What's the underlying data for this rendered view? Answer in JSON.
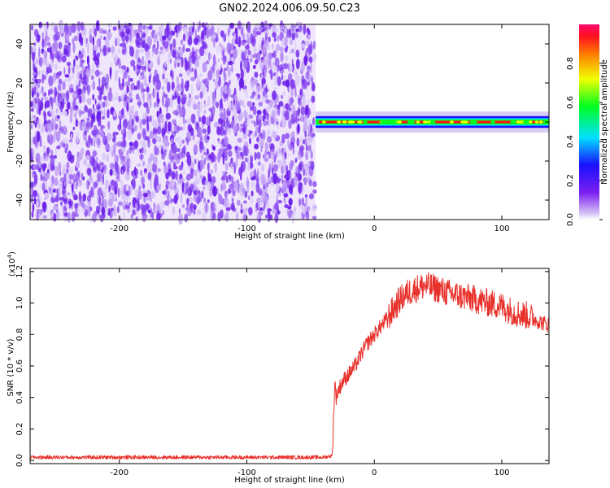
{
  "title": "GN02.2024.006.09.50.C23",
  "colors": {
    "trace": "#e8302a",
    "noise_dark": "#6a1ee8",
    "noise_light": "#d7c5f5",
    "axis": "#000000"
  },
  "chart_data": [
    {
      "type": "heatmap",
      "xlabel": "Height of straight line (km)",
      "ylabel": "Frequency (Hz)",
      "xlim": [
        -270,
        137
      ],
      "ylim": [
        -50,
        50
      ],
      "xticks": [
        -200,
        -100,
        0,
        100
      ],
      "xtick_labels": [
        "-200",
        "-100",
        "0",
        "100"
      ],
      "yticks": [
        -40,
        -20,
        0,
        20,
        40
      ],
      "ytick_labels": [
        "-40",
        "-20",
        "0",
        "20",
        "40"
      ],
      "noise_region_x": [
        -270,
        -46
      ],
      "signal_band": {
        "x": [
          -46,
          137
        ],
        "center_hz": 0,
        "halfwidth_hz": 3
      },
      "colorbar": {
        "label": "Normalized spectral amplitude",
        "range": [
          0,
          1
        ],
        "ticks": [
          0.0,
          0.2,
          0.4,
          0.6,
          0.8
        ],
        "tick_labels": [
          "0.0",
          "0.2",
          "0.4",
          "0.6",
          "0.8"
        ]
      }
    },
    {
      "type": "line",
      "xlabel": "Height of straight line (km)",
      "ylabel": "SNR (10 * v/v)",
      "multiplier_label": "(x10",
      "multiplier_exp": "4",
      "multiplier_close": ")",
      "xlim": [
        -270,
        137
      ],
      "ylim": [
        -0.02,
        1.22
      ],
      "xticks": [
        -200,
        -100,
        0,
        100
      ],
      "xtick_labels": [
        "-200",
        "-100",
        "0",
        "100"
      ],
      "yticks": [
        0.0,
        0.2,
        0.4,
        0.6,
        0.8,
        1.0,
        1.2
      ],
      "ytick_labels": [
        "0.0",
        "0.2",
        "0.4",
        "0.6",
        "0.8",
        "1.0",
        "1.2"
      ],
      "series": [
        {
          "x": [
            -270,
            -200,
            -100,
            -40,
            -33,
            -31,
            -30,
            -28,
            -25,
            -20,
            -15,
            -10,
            -5,
            0,
            5,
            10,
            15,
            20,
            25,
            30,
            35,
            40,
            45,
            50,
            55,
            60,
            70,
            80,
            90,
            100,
            110,
            120,
            130,
            137
          ],
          "y": [
            0.02,
            0.02,
            0.02,
            0.02,
            0.03,
            0.5,
            0.4,
            0.45,
            0.5,
            0.55,
            0.6,
            0.68,
            0.75,
            0.8,
            0.85,
            0.9,
            0.96,
            1.02,
            1.06,
            1.08,
            1.1,
            1.11,
            1.1,
            1.09,
            1.07,
            1.06,
            1.04,
            1.02,
            1.0,
            0.98,
            0.94,
            0.92,
            0.88,
            0.86
          ]
        }
      ]
    }
  ]
}
